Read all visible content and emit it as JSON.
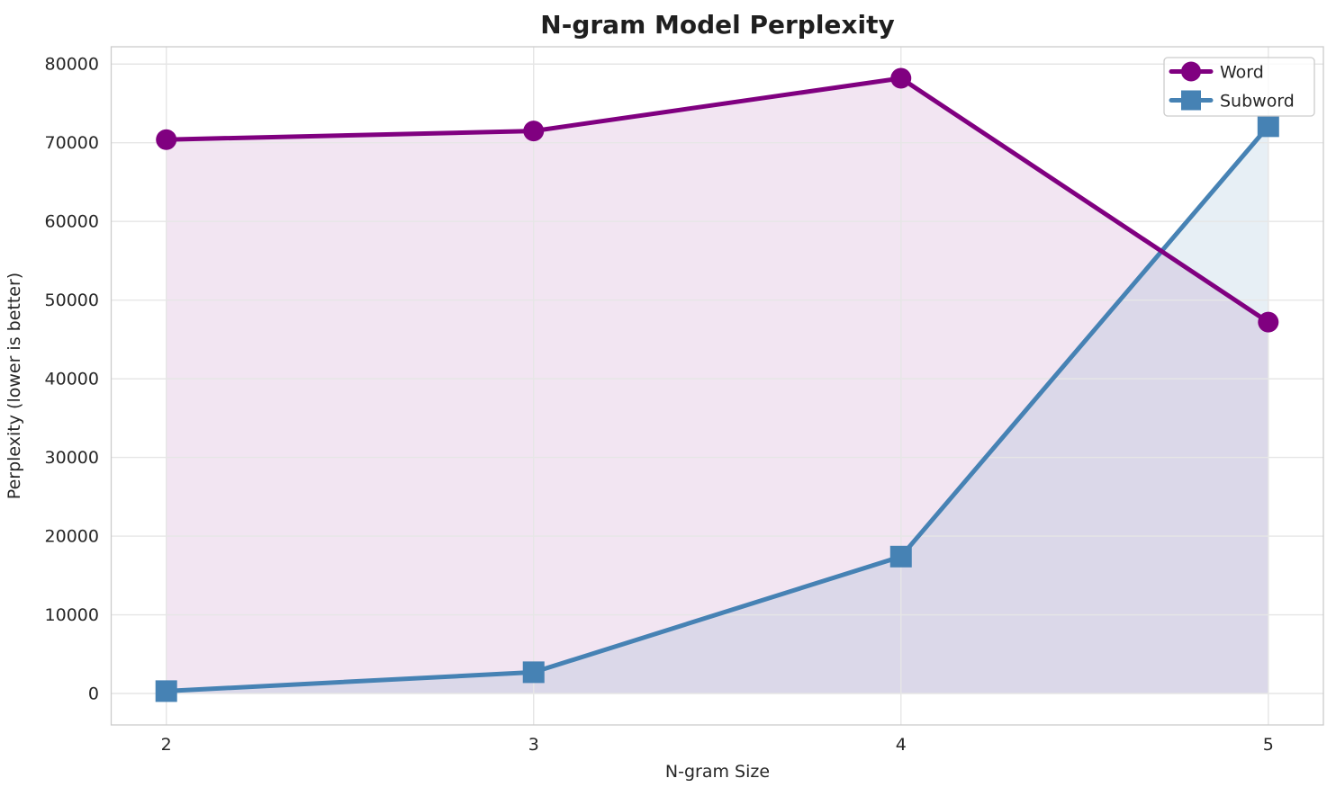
{
  "chart_data": {
    "type": "line",
    "title": "N-gram Model Perplexity",
    "xlabel": "N-gram Size",
    "ylabel": "Perplexity (lower is better)",
    "x": [
      2,
      3,
      4,
      5
    ],
    "series": [
      {
        "name": "Word",
        "marker": "circle",
        "color": "#800080",
        "fill_alpha": 0.1,
        "values": [
          70400,
          71500,
          78200,
          47200
        ]
      },
      {
        "name": "Subword",
        "marker": "square",
        "color": "#4682B4",
        "fill_alpha": 0.13,
        "values": [
          300,
          2700,
          17400,
          72100
        ]
      }
    ],
    "xtick_labels": [
      "2",
      "3",
      "4",
      "5"
    ],
    "ytick_values": [
      0,
      10000,
      20000,
      30000,
      40000,
      50000,
      60000,
      70000,
      80000
    ],
    "ytick_labels": [
      "0",
      "10000",
      "20000",
      "30000",
      "40000",
      "50000",
      "60000",
      "70000",
      "80000"
    ],
    "xlim": [
      1.85,
      5.15
    ],
    "ylim": [
      -4000,
      82200
    ],
    "grid": true,
    "area_baseline": 0,
    "legend": {
      "position": "upper right",
      "entries": [
        "Word",
        "Subword"
      ]
    }
  },
  "style_colors": {
    "grid": "#e6e6e6",
    "spine": "#cccccc",
    "text": "#262626",
    "background": "#ffffff",
    "legend_border": "#cccccc",
    "legend_background": "#ffffff"
  }
}
